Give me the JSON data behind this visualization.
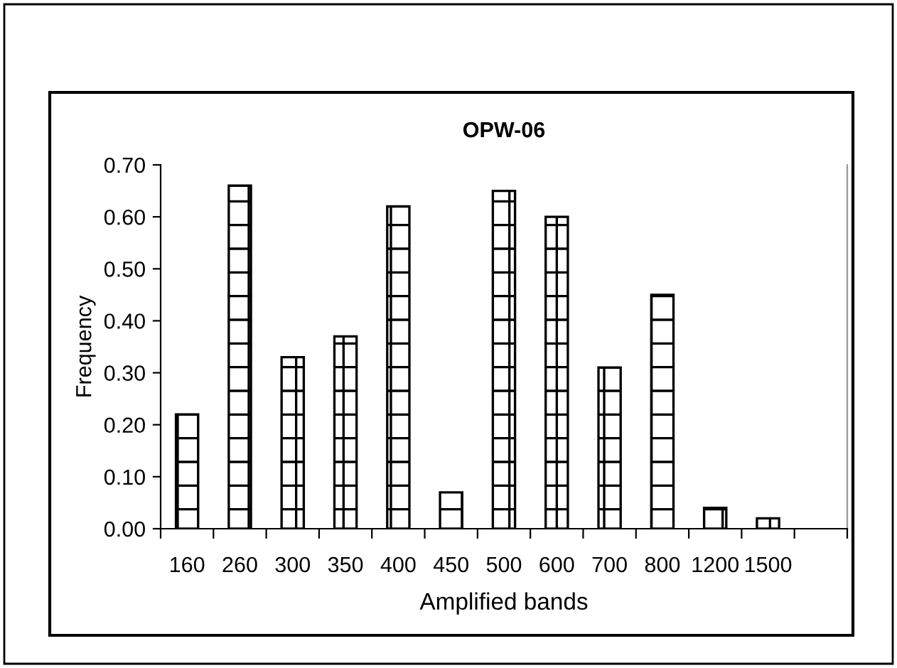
{
  "chart_data": {
    "type": "bar",
    "title": "OPW-06",
    "xlabel": "Amplified bands",
    "ylabel": "Frequency",
    "categories": [
      "160",
      "260",
      "300",
      "350",
      "400",
      "450",
      "500",
      "600",
      "700",
      "800",
      "1200",
      "1500",
      null
    ],
    "values": [
      0.22,
      0.66,
      0.33,
      0.37,
      0.62,
      0.07,
      0.65,
      0.6,
      0.31,
      0.45,
      0.04,
      0.02,
      null
    ],
    "color": "#000000",
    "ylim": [
      0,
      0.7
    ],
    "yticks": [
      {
        "value": 0,
        "label": "0.00"
      },
      {
        "value": 0.1,
        "label": "0.10"
      },
      {
        "value": 0.2,
        "label": "0.20"
      },
      {
        "value": 0.3,
        "label": "0.30"
      },
      {
        "value": 0.4,
        "label": "0.40"
      },
      {
        "value": 0.5,
        "label": "0.50"
      },
      {
        "value": 0.6,
        "label": "0.60"
      },
      {
        "value": 0.7,
        "label": "0.70"
      }
    ],
    "grid": false,
    "legend": false
  }
}
